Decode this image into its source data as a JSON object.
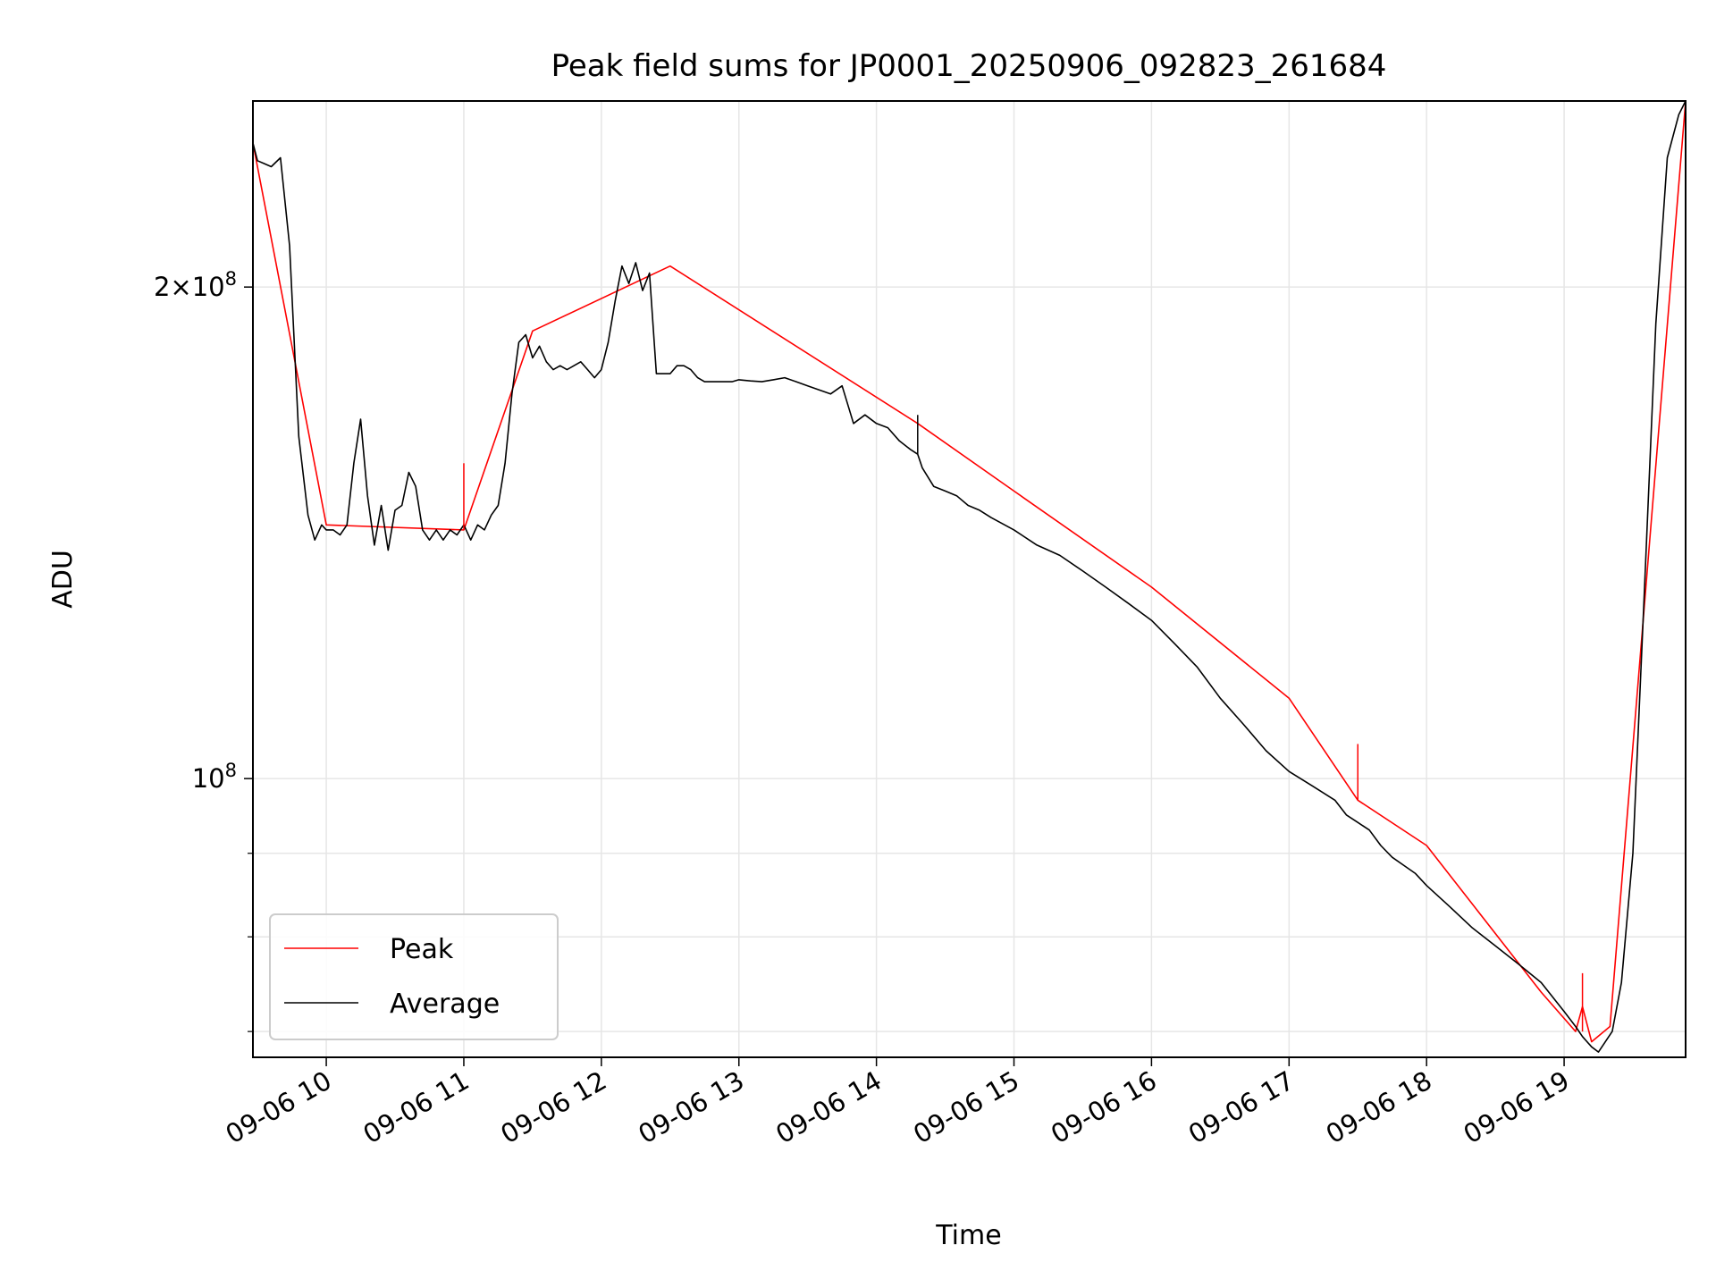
{
  "chart_data": {
    "type": "line",
    "title": "Peak field sums for JP0001_20250906_092823_261684",
    "xlabel": "Time",
    "ylabel": "ADU",
    "y_scale": "log",
    "grid": true,
    "legend_position": "lower-left",
    "xlim": [
      "09-06 09:28",
      "09-06 19:53"
    ],
    "ylim": [
      67500000,
      260000000
    ],
    "x_ticks": [
      "09-06 10",
      "09-06 11",
      "09-06 12",
      "09-06 13",
      "09-06 14",
      "09-06 15",
      "09-06 16",
      "09-06 17",
      "09-06 18",
      "09-06 19"
    ],
    "y_tick_values": [
      100000000,
      200000000
    ],
    "y_tick_labels": [
      {
        "mantissa": "",
        "exp": "8"
      },
      {
        "mantissa": "2",
        "exp": "8"
      }
    ],
    "colors": {
      "peak": "#ff0000",
      "average": "#000000",
      "grid": "#e6e6e6"
    },
    "series": [
      {
        "name": "Average",
        "x": [
          "09-06 09:28",
          "09-06 09:30",
          "09-06 09:33",
          "09-06 09:36",
          "09-06 09:40",
          "09-06 09:44",
          "09-06 09:48",
          "09-06 09:52",
          "09-06 09:55",
          "09-06 09:58",
          "09-06 10:00",
          "09-06 10:03",
          "09-06 10:06",
          "09-06 10:09",
          "09-06 10:12",
          "09-06 10:15",
          "09-06 10:18",
          "09-06 10:21",
          "09-06 10:24",
          "09-06 10:27",
          "09-06 10:30",
          "09-06 10:33",
          "09-06 10:36",
          "09-06 10:39",
          "09-06 10:42",
          "09-06 10:45",
          "09-06 10:48",
          "09-06 10:51",
          "09-06 10:54",
          "09-06 10:57",
          "09-06 11:00",
          "09-06 11:03",
          "09-06 11:06",
          "09-06 11:09",
          "09-06 11:12",
          "09-06 11:15",
          "09-06 11:18",
          "09-06 11:21",
          "09-06 11:24",
          "09-06 11:27",
          "09-06 11:30",
          "09-06 11:33",
          "09-06 11:36",
          "09-06 11:39",
          "09-06 11:42",
          "09-06 11:45",
          "09-06 11:48",
          "09-06 11:51",
          "09-06 11:54",
          "09-06 11:57",
          "09-06 12:00",
          "09-06 12:03",
          "09-06 12:06",
          "09-06 12:09",
          "09-06 12:12",
          "09-06 12:15",
          "09-06 12:18",
          "09-06 12:21",
          "09-06 12:24",
          "09-06 12:27",
          "09-06 12:30",
          "09-06 12:33",
          "09-06 12:36",
          "09-06 12:39",
          "09-06 12:42",
          "09-06 12:45",
          "09-06 12:48",
          "09-06 12:51",
          "09-06 12:54",
          "09-06 12:57",
          "09-06 13:00",
          "09-06 13:05",
          "09-06 13:10",
          "09-06 13:15",
          "09-06 13:20",
          "09-06 13:25",
          "09-06 13:30",
          "09-06 13:35",
          "09-06 13:40",
          "09-06 13:45",
          "09-06 13:50",
          "09-06 13:55",
          "09-06 14:00",
          "09-06 14:05",
          "09-06 14:10",
          "09-06 14:15",
          "09-06 14:18",
          "09-06 14:20",
          "09-06 14:25",
          "09-06 14:30",
          "09-06 14:35",
          "09-06 14:40",
          "09-06 14:45",
          "09-06 14:50",
          "09-06 15:00",
          "09-06 15:10",
          "09-06 15:20",
          "09-06 15:30",
          "09-06 15:40",
          "09-06 15:50",
          "09-06 16:00",
          "09-06 16:10",
          "09-06 16:20",
          "09-06 16:30",
          "09-06 16:40",
          "09-06 16:50",
          "09-06 17:00",
          "09-06 17:10",
          "09-06 17:20",
          "09-06 17:25",
          "09-06 17:30",
          "09-06 17:35",
          "09-06 17:40",
          "09-06 17:45",
          "09-06 17:50",
          "09-06 17:55",
          "09-06 18:00",
          "09-06 18:10",
          "09-06 18:20",
          "09-06 18:30",
          "09-06 18:40",
          "09-06 18:50",
          "09-06 19:00",
          "09-06 19:05",
          "09-06 19:08",
          "09-06 19:12",
          "09-06 19:15",
          "09-06 19:18",
          "09-06 19:21",
          "09-06 19:25",
          "09-06 19:30",
          "09-06 19:35",
          "09-06 19:40",
          "09-06 19:45",
          "09-06 19:50",
          "09-06 19:53"
        ],
        "y": [
          245000000,
          239000000,
          238000000,
          237000000,
          240000000,
          212000000,
          162000000,
          145000000,
          140000000,
          143000000,
          142000000,
          142000000,
          141000000,
          143000000,
          156000000,
          166000000,
          149000000,
          139000000,
          147000000,
          138000000,
          146000000,
          147000000,
          154000000,
          151000000,
          142000000,
          140000000,
          142000000,
          140000000,
          142000000,
          141000000,
          143000000,
          140000000,
          143000000,
          142000000,
          145000000,
          147000000,
          156000000,
          172000000,
          185000000,
          187000000,
          181000000,
          184000000,
          180000000,
          178000000,
          179000000,
          178000000,
          179000000,
          180000000,
          178000000,
          176000000,
          178000000,
          185000000,
          196000000,
          206000000,
          201000000,
          207000000,
          199000000,
          204000000,
          177000000,
          177000000,
          177000000,
          179000000,
          179000000,
          178000000,
          176000000,
          175000000,
          175000000,
          175000000,
          175000000,
          175000000,
          175500000,
          175200000,
          175000000,
          175500000,
          176000000,
          175000000,
          174000000,
          173000000,
          172000000,
          174000000,
          165000000,
          167000000,
          165000000,
          164000000,
          161000000,
          159000000,
          158000000,
          155000000,
          151000000,
          150000000,
          149000000,
          147000000,
          146000000,
          144500000,
          142000000,
          139000000,
          137000000,
          134000000,
          131000000,
          128000000,
          125000000,
          121000000,
          117000000,
          112000000,
          108000000,
          104000000,
          101000000,
          99000000,
          97000000,
          95000000,
          94000000,
          93000000,
          91000000,
          89500000,
          88500000,
          87500000,
          86000000,
          83500000,
          81000000,
          79000000,
          77000000,
          75000000,
          72000000,
          70500000,
          69500000,
          68500000,
          68000000,
          69000000,
          70000000,
          75000000,
          90000000,
          130000000,
          190000000,
          240000000,
          255000000,
          260000000
        ]
      },
      {
        "name": "Peak",
        "x": [
          "09-06 09:28",
          "09-06 10:00",
          "09-06 11:00",
          "09-06 11:30",
          "09-06 12:30",
          "09-06 14:18",
          "09-06 15:00",
          "09-06 16:00",
          "09-06 17:00",
          "09-06 17:30",
          "09-06 18:00",
          "09-06 18:50",
          "09-06 19:05",
          "09-06 19:08",
          "09-06 19:12",
          "09-06 19:20",
          "09-06 19:53"
        ],
        "y": [
          245000000,
          143000000,
          142000000,
          188000000,
          206000000,
          165000000,
          150000000,
          131000000,
          112000000,
          97000000,
          91000000,
          74000000,
          70000000,
          72500000,
          69000000,
          70500000,
          260000000
        ]
      }
    ],
    "spikes": [
      {
        "series": "Peak",
        "x": "09-06 11:00",
        "from": 142000000,
        "to": 156000000
      },
      {
        "series": "Peak",
        "x": "09-06 17:30",
        "from": 97000000,
        "to": 105000000
      },
      {
        "series": "Peak",
        "x": "09-06 19:08",
        "from": 70000000,
        "to": 76000000
      },
      {
        "series": "Average",
        "x": "09-06 14:18",
        "from": 158000000,
        "to": 167000000
      }
    ]
  }
}
